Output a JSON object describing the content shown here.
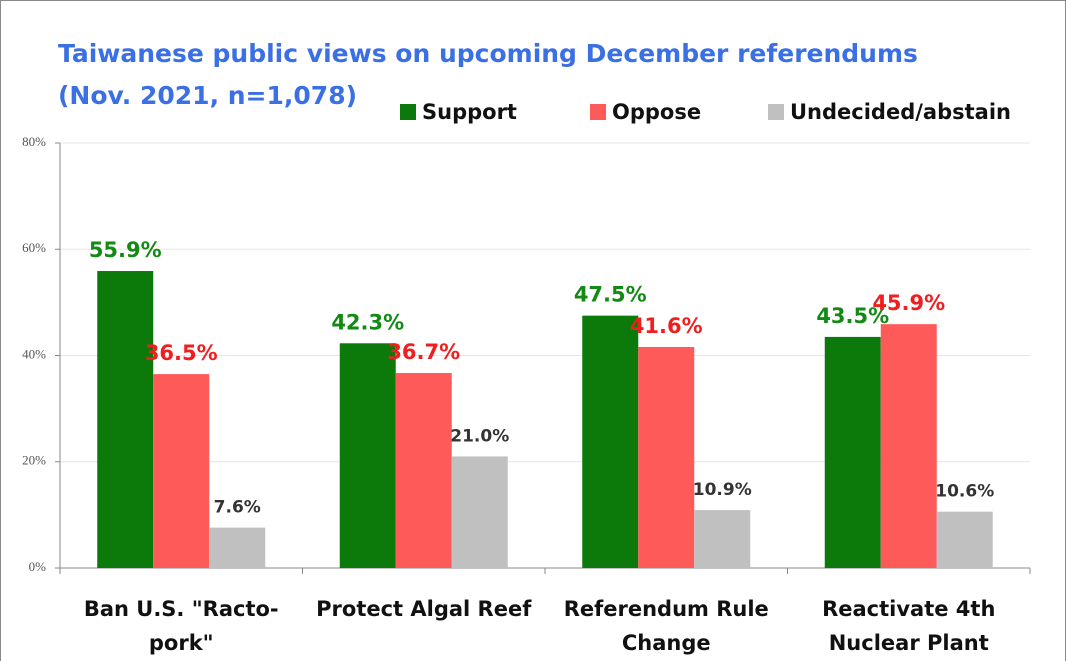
{
  "chart_data": {
    "type": "bar",
    "title": "Taiwanese public views on upcoming December referendums",
    "subtitle": "(Nov. 2021, n=1,078)",
    "categories": [
      "Ban U.S. \"Racto-pork\"",
      "Protect Algal Reef",
      "Referendum Rule Change",
      "Reactivate 4th Nuclear Plant"
    ],
    "series": [
      {
        "name": "Support",
        "color": "#0b7a0b",
        "values": [
          55.9,
          42.3,
          47.5,
          43.5
        ],
        "value_labels": [
          "55.9%",
          "42.3%",
          "47.5%",
          "43.5%"
        ]
      },
      {
        "name": "Oppose",
        "color": "#ff5a5a",
        "values": [
          36.5,
          36.7,
          41.6,
          45.9
        ],
        "value_labels": [
          "36.5%",
          "36.7%",
          "41.6%",
          "45.9%"
        ]
      },
      {
        "name": "Undecided/abstain",
        "color": "#c0c0c0",
        "values": [
          7.6,
          21.0,
          10.9,
          10.6
        ],
        "value_labels": [
          "7.6%",
          "21.0%",
          "10.9%",
          "10.6%"
        ]
      }
    ],
    "ylim": [
      0,
      80
    ],
    "yticks": [
      {
        "value": 0,
        "label": "0%"
      },
      {
        "value": 20,
        "label": "20%"
      },
      {
        "value": 40,
        "label": "40%"
      },
      {
        "value": 60,
        "label": "60%"
      },
      {
        "value": 80,
        "label": "80%"
      }
    ],
    "grid": true,
    "legend": "top-right"
  }
}
